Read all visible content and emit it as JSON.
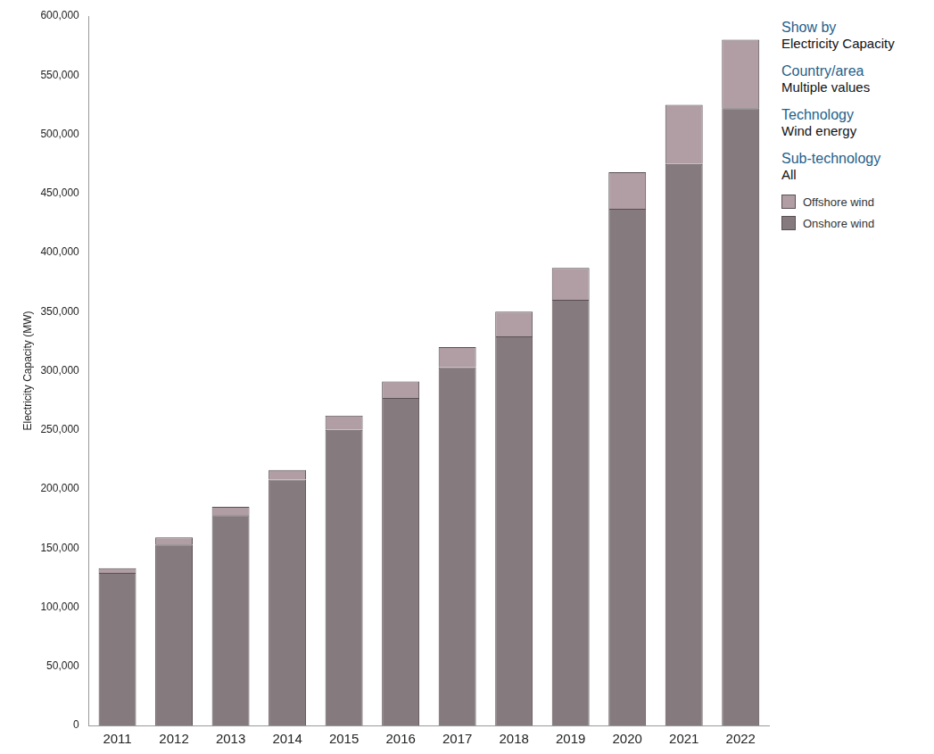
{
  "chart_data": {
    "type": "bar",
    "stacked": true,
    "grid": false,
    "legend": "right",
    "y_label": "Electricity Capacity (MW)",
    "categories": [
      "2011",
      "2012",
      "2013",
      "2014",
      "2015",
      "2016",
      "2017",
      "2018",
      "2019",
      "2020",
      "2021",
      "2022"
    ],
    "series": [
      {
        "name": "Onshore wind",
        "color": "#857a7e",
        "values": [
          129000,
          153000,
          178000,
          208000,
          250000,
          277000,
          303000,
          329000,
          360000,
          437000,
          475000,
          522000
        ]
      },
      {
        "name": "Offshore wind",
        "color": "#b09ea4",
        "values": [
          4000,
          6000,
          7000,
          8000,
          12000,
          14000,
          17000,
          21000,
          27000,
          31000,
          50000,
          58000
        ]
      }
    ],
    "ylim": [
      0,
      600000
    ],
    "yticks": [
      0,
      {
        "value": 50000,
        "label": "50,000"
      },
      {
        "value": 100000,
        "label": "100,000"
      },
      {
        "value": 150000,
        "label": "150,000"
      },
      {
        "value": 200000,
        "label": "200,000"
      },
      {
        "value": 250000,
        "label": "250,000"
      },
      {
        "value": 300000,
        "label": "300,000"
      },
      {
        "value": 350000,
        "label": "350,000"
      },
      {
        "value": 400000,
        "label": "400,000"
      },
      {
        "value": 450000,
        "label": "450,000"
      },
      {
        "value": 500000,
        "label": "500,000"
      },
      {
        "value": 550000,
        "label": "550,000"
      },
      {
        "value": 600000,
        "label": "600,000"
      }
    ],
    "annotations": [
      {
        "label": "Show by",
        "value": "Electricity Capacity"
      },
      {
        "label": "Country/area",
        "value": "Multiple values"
      },
      {
        "label": "Technology",
        "value": "Wind energy"
      },
      {
        "label": "Sub-technology",
        "value": "All"
      }
    ]
  }
}
